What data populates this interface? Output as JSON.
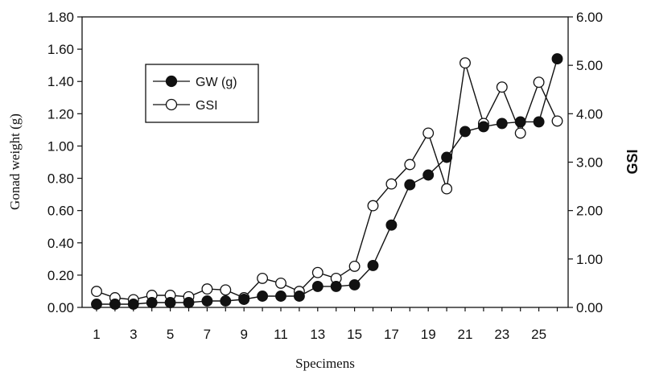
{
  "chart_data": {
    "type": "line",
    "title": "",
    "xlabel": "Specimens",
    "ylabel": "Gonad weight (g)",
    "y2label": "GSI",
    "x": [
      1,
      2,
      3,
      4,
      5,
      6,
      7,
      8,
      9,
      10,
      11,
      12,
      13,
      14,
      15,
      16,
      17,
      18,
      19,
      20,
      21,
      22,
      23,
      24,
      25,
      26
    ],
    "x_tick_labels": [
      "1",
      "3",
      "5",
      "7",
      "9",
      "11",
      "13",
      "15",
      "17",
      "19",
      "21",
      "23",
      "25"
    ],
    "x_tick_values": [
      1,
      3,
      5,
      7,
      9,
      11,
      13,
      15,
      17,
      19,
      21,
      23,
      25
    ],
    "ylim": [
      0,
      1.8
    ],
    "y_tick_labels": [
      "0.00",
      "0.20",
      "0.40",
      "0.60",
      "0.80",
      "1.00",
      "1.20",
      "1.40",
      "1.60",
      "1.80"
    ],
    "y2lim": [
      0,
      6
    ],
    "y2_tick_labels": [
      "0.00",
      "1.00",
      "2.00",
      "3.00",
      "4.00",
      "5.00",
      "6.00"
    ],
    "legend_position": "upper-left",
    "grid": false,
    "series": [
      {
        "name": "GW (g)",
        "axis": "left",
        "marker": "filled-circle",
        "values": [
          0.02,
          0.02,
          0.02,
          0.03,
          0.03,
          0.03,
          0.04,
          0.04,
          0.05,
          0.07,
          0.07,
          0.07,
          0.13,
          0.13,
          0.14,
          0.26,
          0.51,
          0.76,
          0.82,
          0.93,
          1.09,
          1.12,
          1.14,
          1.15,
          1.15,
          1.54
        ]
      },
      {
        "name": "GSI",
        "axis": "right",
        "marker": "open-circle",
        "values": [
          0.33,
          0.2,
          0.16,
          0.25,
          0.25,
          0.22,
          0.38,
          0.36,
          0.2,
          0.6,
          0.5,
          0.33,
          0.72,
          0.6,
          0.85,
          2.1,
          2.55,
          2.95,
          3.6,
          2.45,
          5.05,
          3.8,
          4.55,
          3.6,
          4.65,
          3.85
        ]
      }
    ]
  }
}
